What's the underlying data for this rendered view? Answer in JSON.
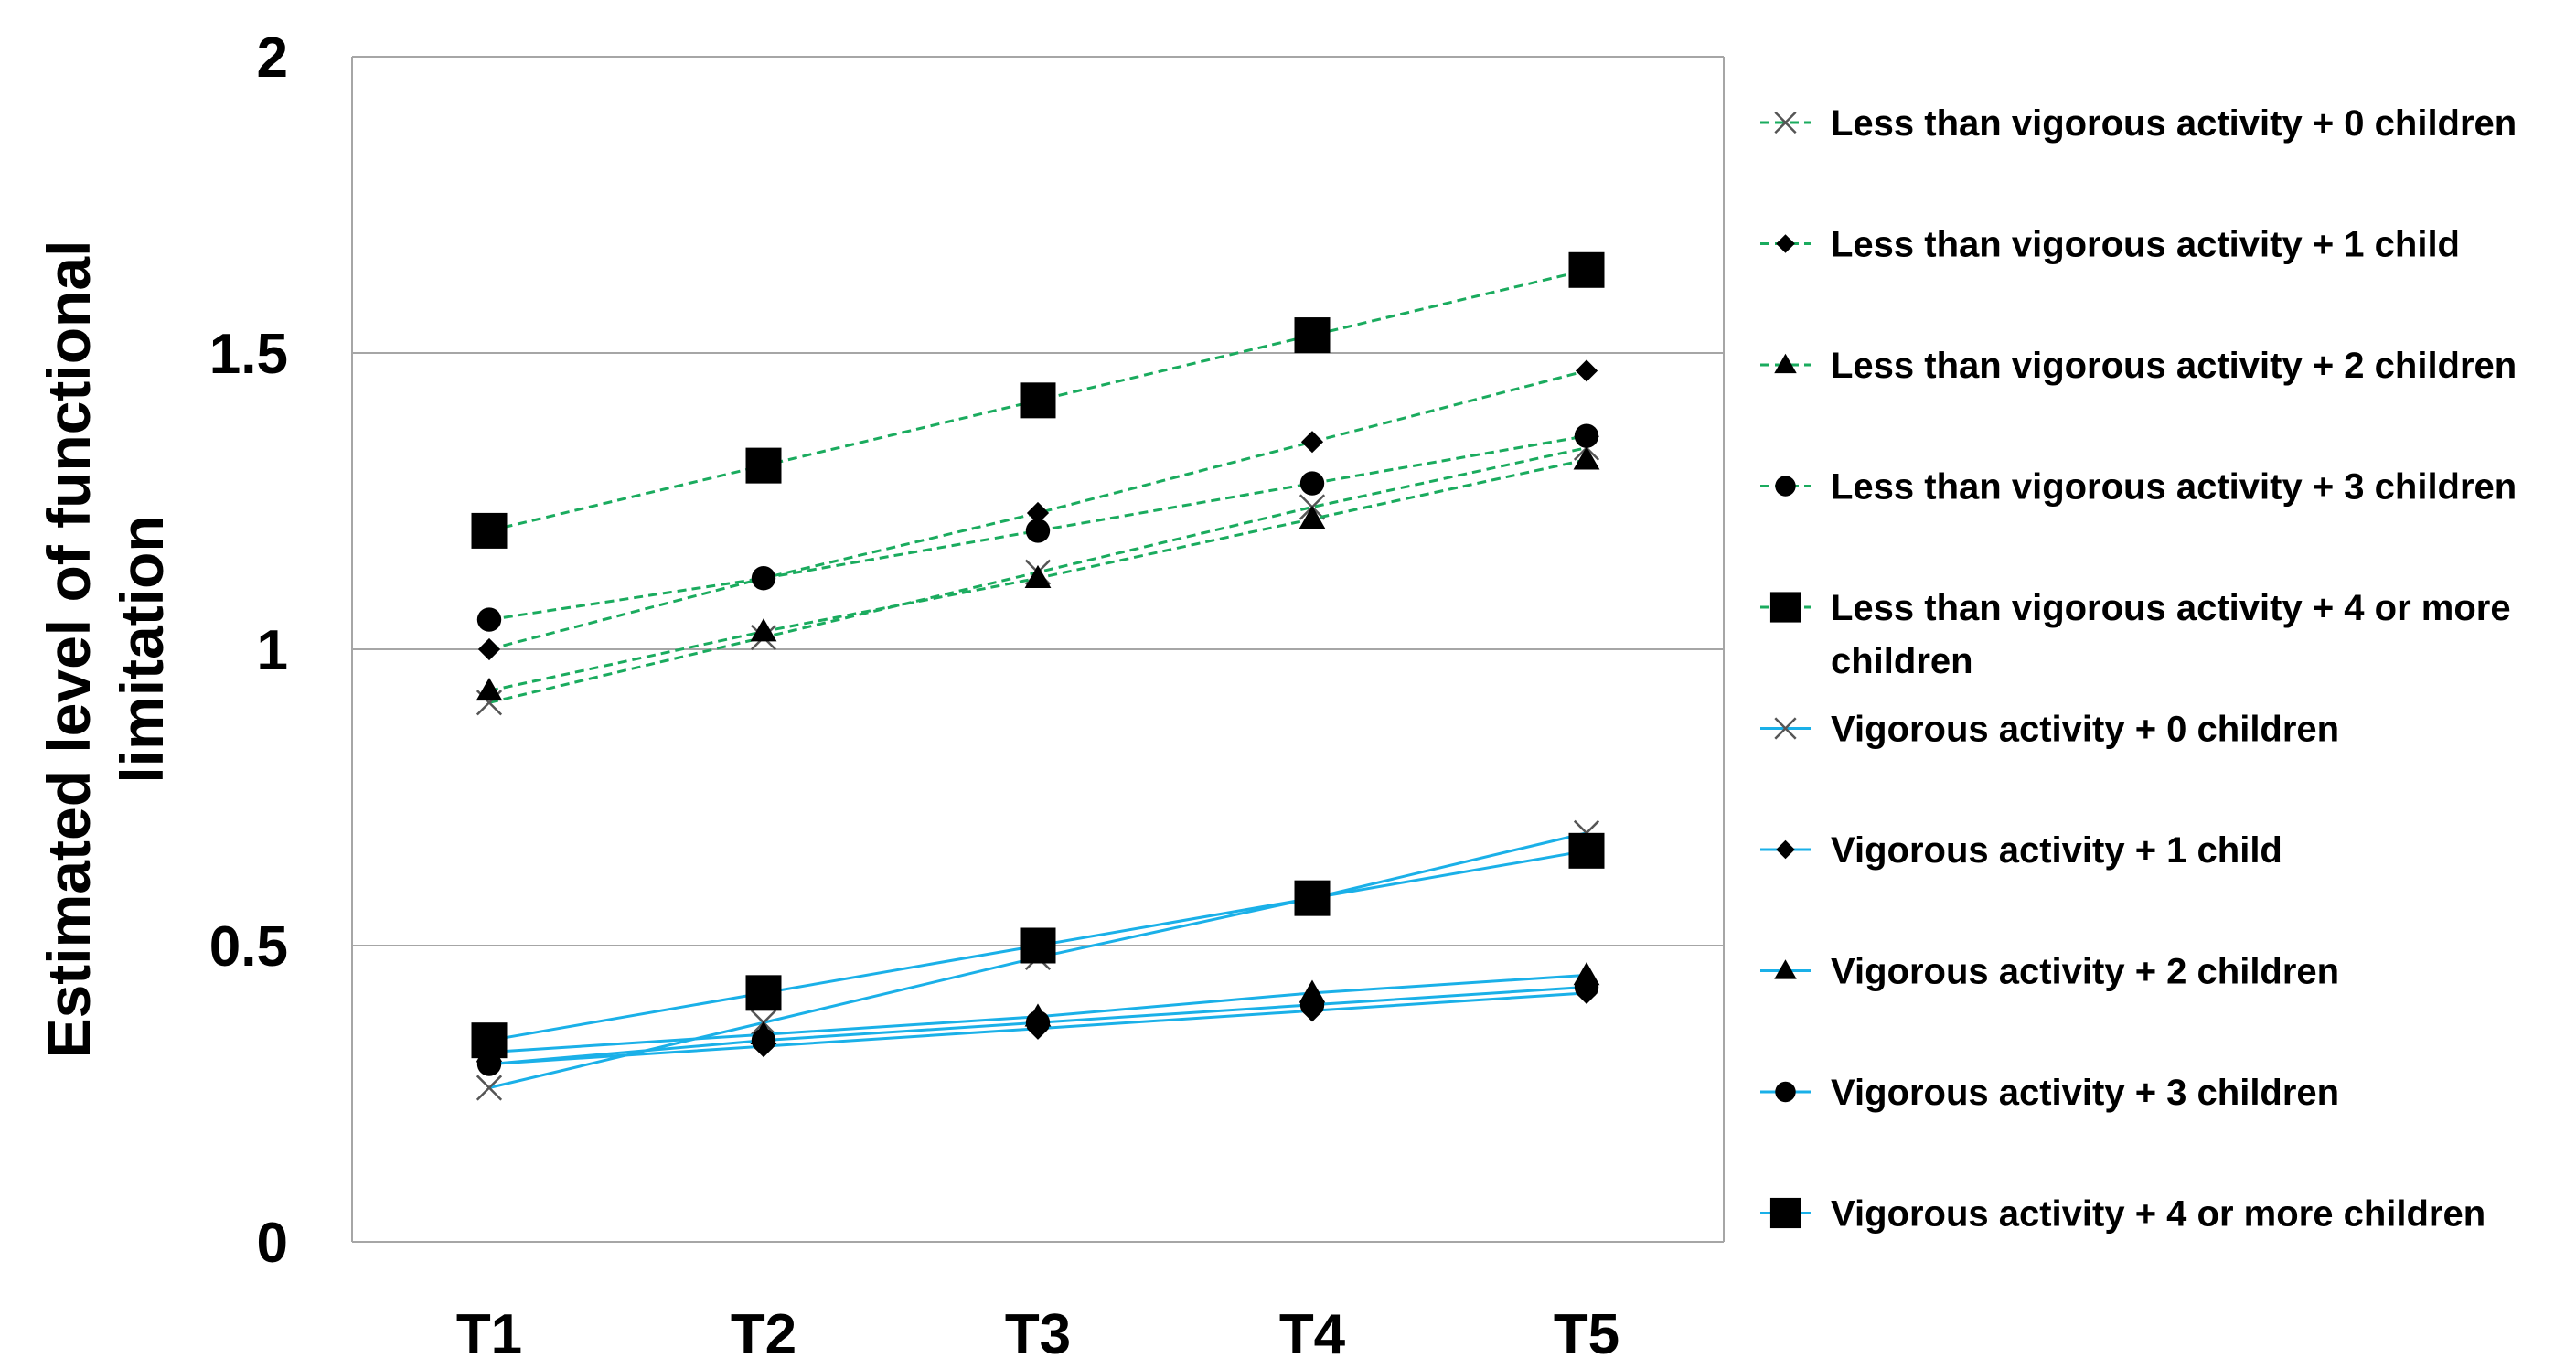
{
  "chart_data": {
    "type": "line",
    "title": "",
    "xlabel": "",
    "ylabel": "Estimated level of functional limitation",
    "ylabel_lines": [
      "Estimated level of functional",
      "limitation"
    ],
    "categories": [
      "T1",
      "T2",
      "T3",
      "T4",
      "T5"
    ],
    "ylim": [
      0,
      2
    ],
    "yticks": [
      0,
      0.5,
      1,
      1.5,
      2
    ],
    "ytick_labels": [
      "0",
      "0.5",
      "1",
      "1.5",
      "2"
    ],
    "grid": "horizontal",
    "legend_position": "right",
    "series": [
      {
        "name": "Less than vigorous activity + 0 children",
        "legend_lines": [
          "Less than vigorous activity + 0 children"
        ],
        "marker": "x",
        "style": "dashed",
        "color": "#1aab5e",
        "values": [
          0.91,
          1.02,
          1.13,
          1.24,
          1.34
        ]
      },
      {
        "name": "Less than vigorous activity + 1 child",
        "legend_lines": [
          "Less than vigorous activity + 1 child"
        ],
        "marker": "diamond",
        "style": "dashed",
        "color": "#1aab5e",
        "values": [
          1.0,
          1.12,
          1.23,
          1.35,
          1.47
        ]
      },
      {
        "name": "Less than vigorous activity + 2 children",
        "legend_lines": [
          "Less than vigorous activity + 2 children"
        ],
        "marker": "triangle",
        "style": "dashed",
        "color": "#1aab5e",
        "values": [
          0.93,
          1.03,
          1.12,
          1.22,
          1.32
        ]
      },
      {
        "name": "Less than vigorous activity + 3 children",
        "legend_lines": [
          "Less than vigorous activity + 3 children"
        ],
        "marker": "circle",
        "style": "dashed",
        "color": "#1aab5e",
        "values": [
          1.05,
          1.12,
          1.2,
          1.28,
          1.36
        ]
      },
      {
        "name": "Less than vigorous activity + 4 or more children",
        "legend_lines": [
          "Less than vigorous activity + 4 or more",
          "children"
        ],
        "marker": "square",
        "style": "dashed",
        "color": "#1aab5e",
        "values": [
          1.2,
          1.31,
          1.42,
          1.53,
          1.64
        ]
      },
      {
        "name": "Vigorous activity + 0 children",
        "legend_lines": [
          "Vigorous activity + 0 children"
        ],
        "marker": "x",
        "style": "solid",
        "color": "#1ab0e8",
        "values": [
          0.26,
          0.37,
          0.48,
          0.58,
          0.69
        ]
      },
      {
        "name": "Vigorous activity + 1 child",
        "legend_lines": [
          "Vigorous activity + 1 child"
        ],
        "marker": "diamond",
        "style": "solid",
        "color": "#1ab0e8",
        "values": [
          0.3,
          0.33,
          0.36,
          0.39,
          0.42
        ]
      },
      {
        "name": "Vigorous activity + 2 children",
        "legend_lines": [
          "Vigorous activity + 2 children"
        ],
        "marker": "triangle",
        "style": "solid",
        "color": "#1ab0e8",
        "values": [
          0.32,
          0.35,
          0.38,
          0.42,
          0.45
        ]
      },
      {
        "name": "Vigorous activity + 3 children",
        "legend_lines": [
          "Vigorous activity + 3 children"
        ],
        "marker": "circle",
        "style": "solid",
        "color": "#1ab0e8",
        "values": [
          0.3,
          0.34,
          0.37,
          0.4,
          0.43
        ]
      },
      {
        "name": "Vigorous activity + 4 or more children",
        "legend_lines": [
          "Vigorous activity + 4 or more children"
        ],
        "marker": "square",
        "style": "solid",
        "color": "#1ab0e8",
        "values": [
          0.34,
          0.42,
          0.5,
          0.58,
          0.66
        ]
      }
    ]
  }
}
